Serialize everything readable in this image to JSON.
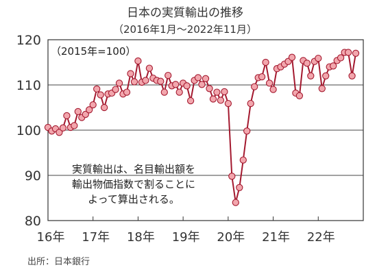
{
  "chart_data": {
    "type": "line",
    "title": "日本の実質輸出の推移",
    "subtitle": "（2016年1月～2022年11月）",
    "unit_note": "（2015年=100）",
    "annotation": [
      "実質輸出は、名目輸出額を",
      "輸出物価指数で割ることに",
      "よって算出される。"
    ],
    "source": "出所：日本銀行",
    "ylim": [
      80,
      120
    ],
    "yticks": [
      80,
      90,
      100,
      110,
      120
    ],
    "x_start": "2016-01",
    "xtick_labels": [
      "16年",
      "17年",
      "18年",
      "19年",
      "20年",
      "21年",
      "22年"
    ],
    "grid": true,
    "colors": {
      "line": "#a3182e",
      "marker_fill": "#f2a6ad",
      "marker_edge": "#a3182e",
      "grid": "#444444"
    },
    "series": [
      {
        "values": [
          100.6,
          99.8,
          100.3,
          99.5,
          100.5,
          103.2,
          100.6,
          101.0,
          104.1,
          102.8,
          103.5,
          104.5,
          105.6,
          109.1,
          107.8,
          105.0,
          108.0,
          108.2,
          109.0,
          110.4,
          108.0,
          108.4,
          112.5,
          110.7,
          115.3,
          110.6,
          111.0,
          113.7,
          111.5,
          111.0,
          110.8,
          108.4,
          112.1,
          109.8,
          110.1,
          108.4,
          110.4,
          109.8,
          106.5,
          111.0,
          111.6,
          110.1,
          111.4,
          109.2,
          106.9,
          108.4,
          106.6,
          108.5,
          105.9,
          89.8,
          84.0,
          87.3,
          93.4,
          99.8,
          105.9,
          109.6,
          111.6,
          111.8,
          115.0,
          110.4,
          109.0,
          113.6,
          114.0,
          114.6,
          115.2,
          116.1,
          108.2,
          107.6,
          115.4,
          114.8,
          112.0,
          115.2,
          115.9,
          109.2,
          112.0,
          114.0,
          114.2,
          115.4,
          116.0,
          117.2,
          117.2,
          112.0,
          117.0
        ]
      }
    ]
  }
}
